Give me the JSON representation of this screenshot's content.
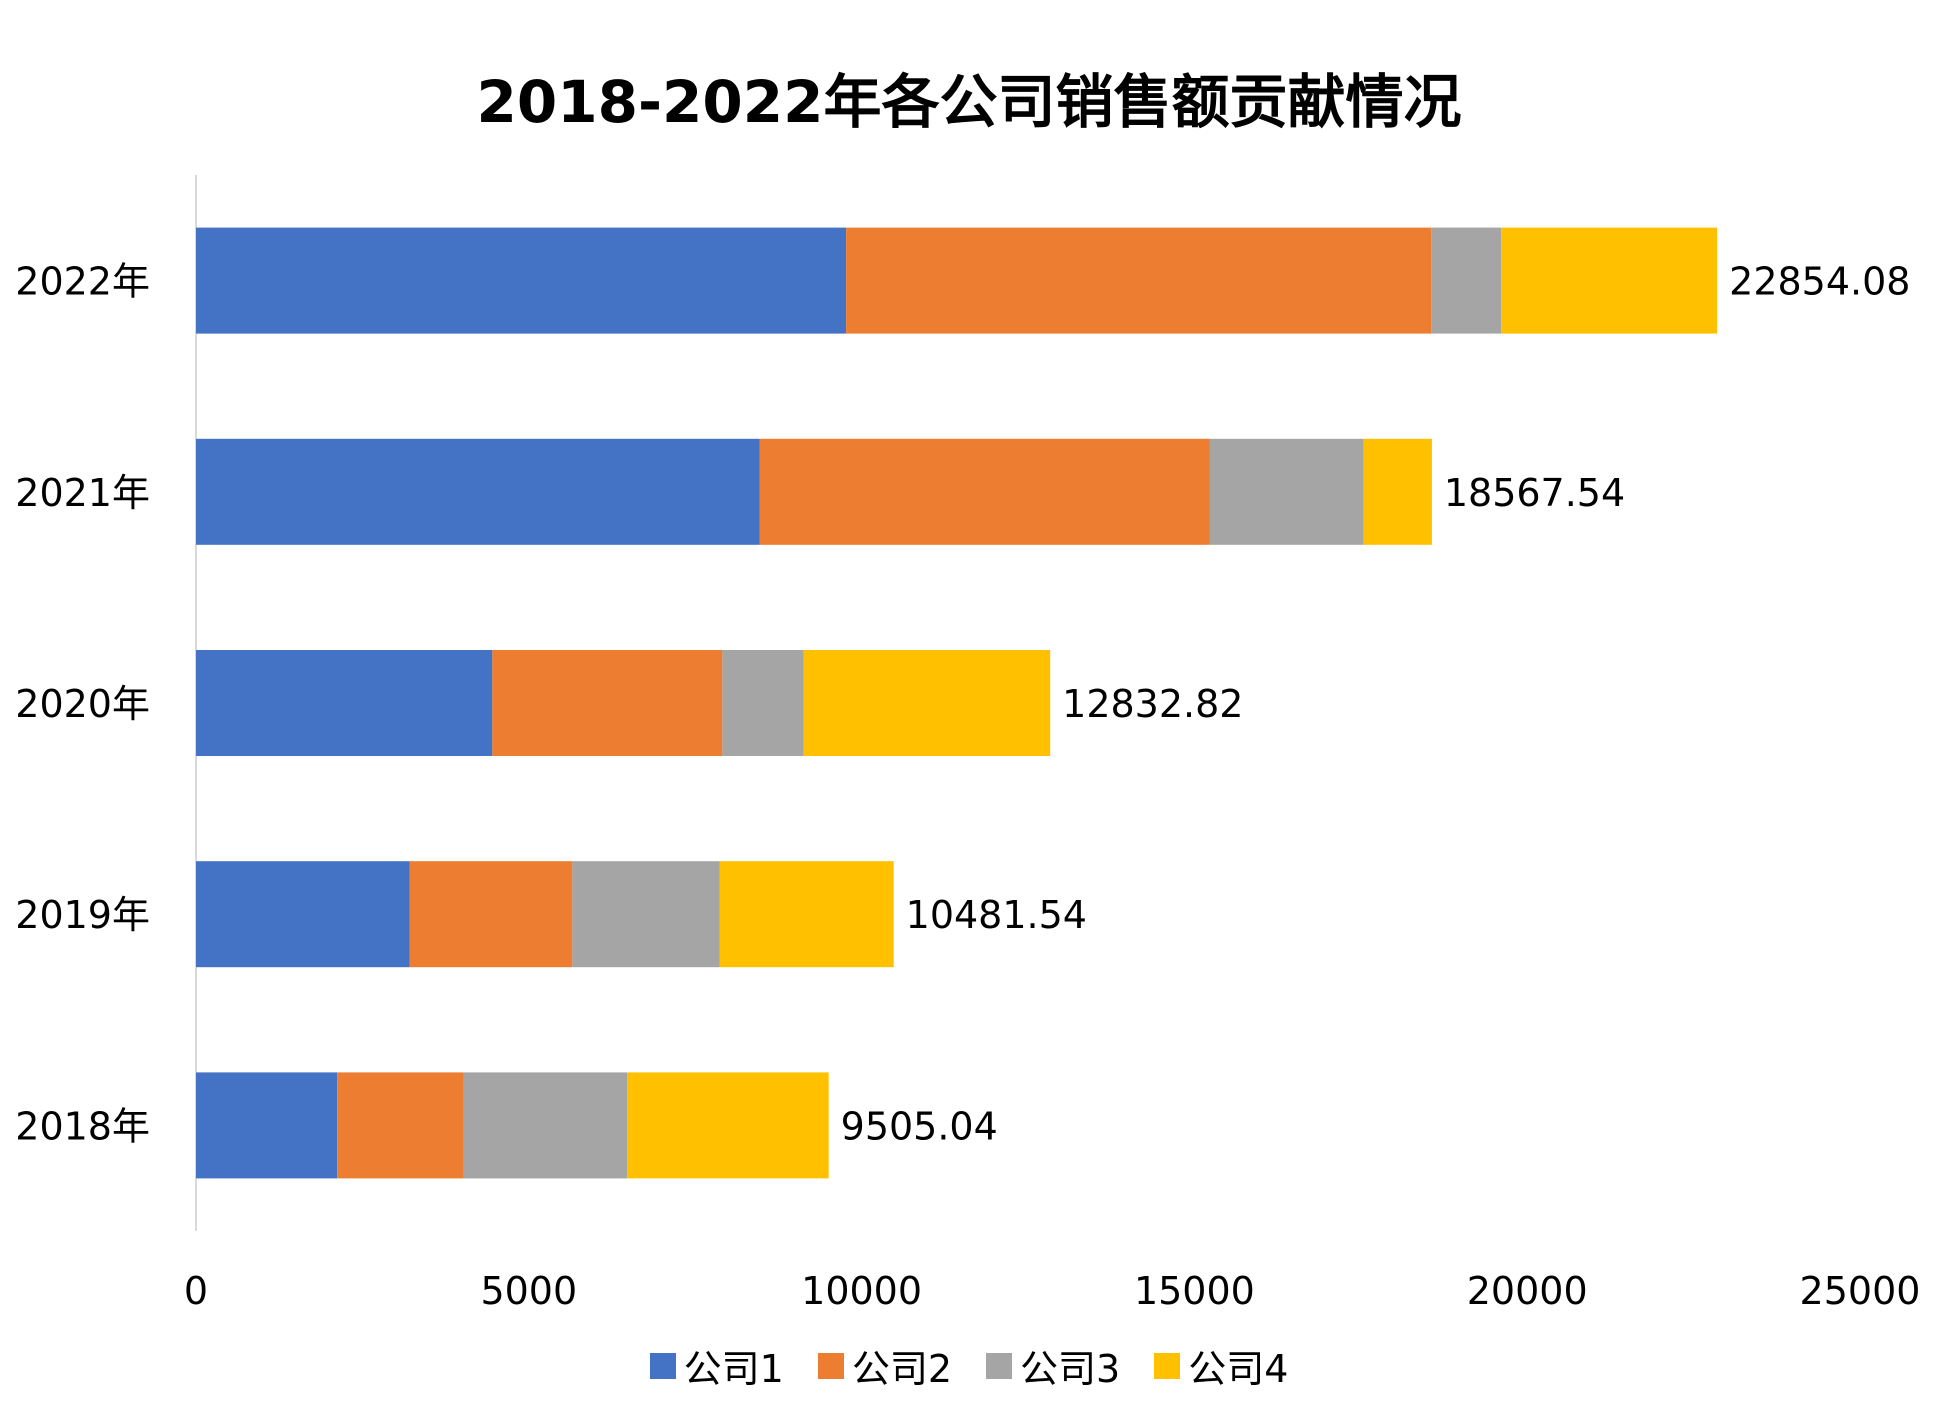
{
  "chart_data": {
    "type": "bar",
    "orientation": "horizontal",
    "stacked": true,
    "title": "2018-2022年各公司销售额贡献情况",
    "categories": [
      "2022年",
      "2021年",
      "2020年",
      "2019年",
      "2018年"
    ],
    "series": [
      {
        "name": "公司1",
        "color": "#4472C4",
        "values": [
          9767,
          8471,
          4452,
          3212,
          2122
        ]
      },
      {
        "name": "公司2",
        "color": "#ED7D31",
        "values": [
          8790,
          6762,
          3456,
          2442,
          1898
        ]
      },
      {
        "name": "公司3",
        "color": "#A5A5A5",
        "values": [
          1052,
          2310,
          1220,
          2216,
          2460
        ]
      },
      {
        "name": "公司4",
        "color": "#FFC000",
        "values": [
          3245,
          1025,
          3705,
          2612,
          3025
        ]
      }
    ],
    "totals": [
      "22854.08",
      "18567.54",
      "12832.82",
      "10481.54",
      "9505.04"
    ],
    "xlim": [
      0,
      25000
    ],
    "xticks": [
      "0",
      "5000",
      "10000",
      "15000",
      "20000",
      "25000"
    ],
    "grid": false,
    "legend": "bottom"
  }
}
